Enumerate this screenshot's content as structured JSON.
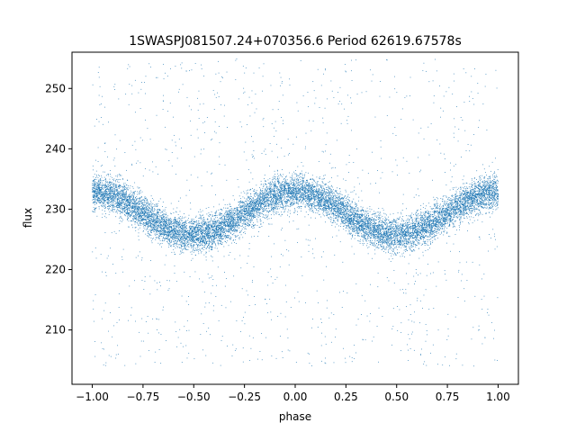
{
  "chart_data": {
    "type": "scatter",
    "title": "1SWASPJ081507.24+070356.6 Period 62619.67578s",
    "xlabel": "phase",
    "ylabel": "flux",
    "xlim": [
      -1.1,
      1.1
    ],
    "ylim": [
      201,
      256
    ],
    "x_ticks": [
      -1.0,
      -0.75,
      -0.5,
      -0.25,
      0.0,
      0.25,
      0.5,
      0.75,
      1.0
    ],
    "x_tick_labels": [
      "−1.00",
      "−0.75",
      "−0.50",
      "−0.25",
      "0.00",
      "0.25",
      "0.50",
      "0.75",
      "1.00"
    ],
    "y_ticks": [
      210,
      220,
      230,
      240,
      250
    ],
    "y_tick_labels": [
      "210",
      "220",
      "230",
      "240",
      "250"
    ],
    "grid": false,
    "marker_color": "#1f77b4",
    "series": [
      {
        "phase_range": [
          -1.0,
          1.0
        ],
        "model": "sinusoid",
        "mean_flux": 229.3,
        "amplitude": 3.6,
        "peak_phases": [
          -1.0,
          0.0,
          1.0
        ],
        "trough_phases": [
          -0.5,
          0.5
        ],
        "scatter_sigma": 1.4,
        "point_count": 14000,
        "outlier_fraction": 0.08,
        "outlier_flux_range": [
          204,
          255
        ]
      }
    ]
  }
}
